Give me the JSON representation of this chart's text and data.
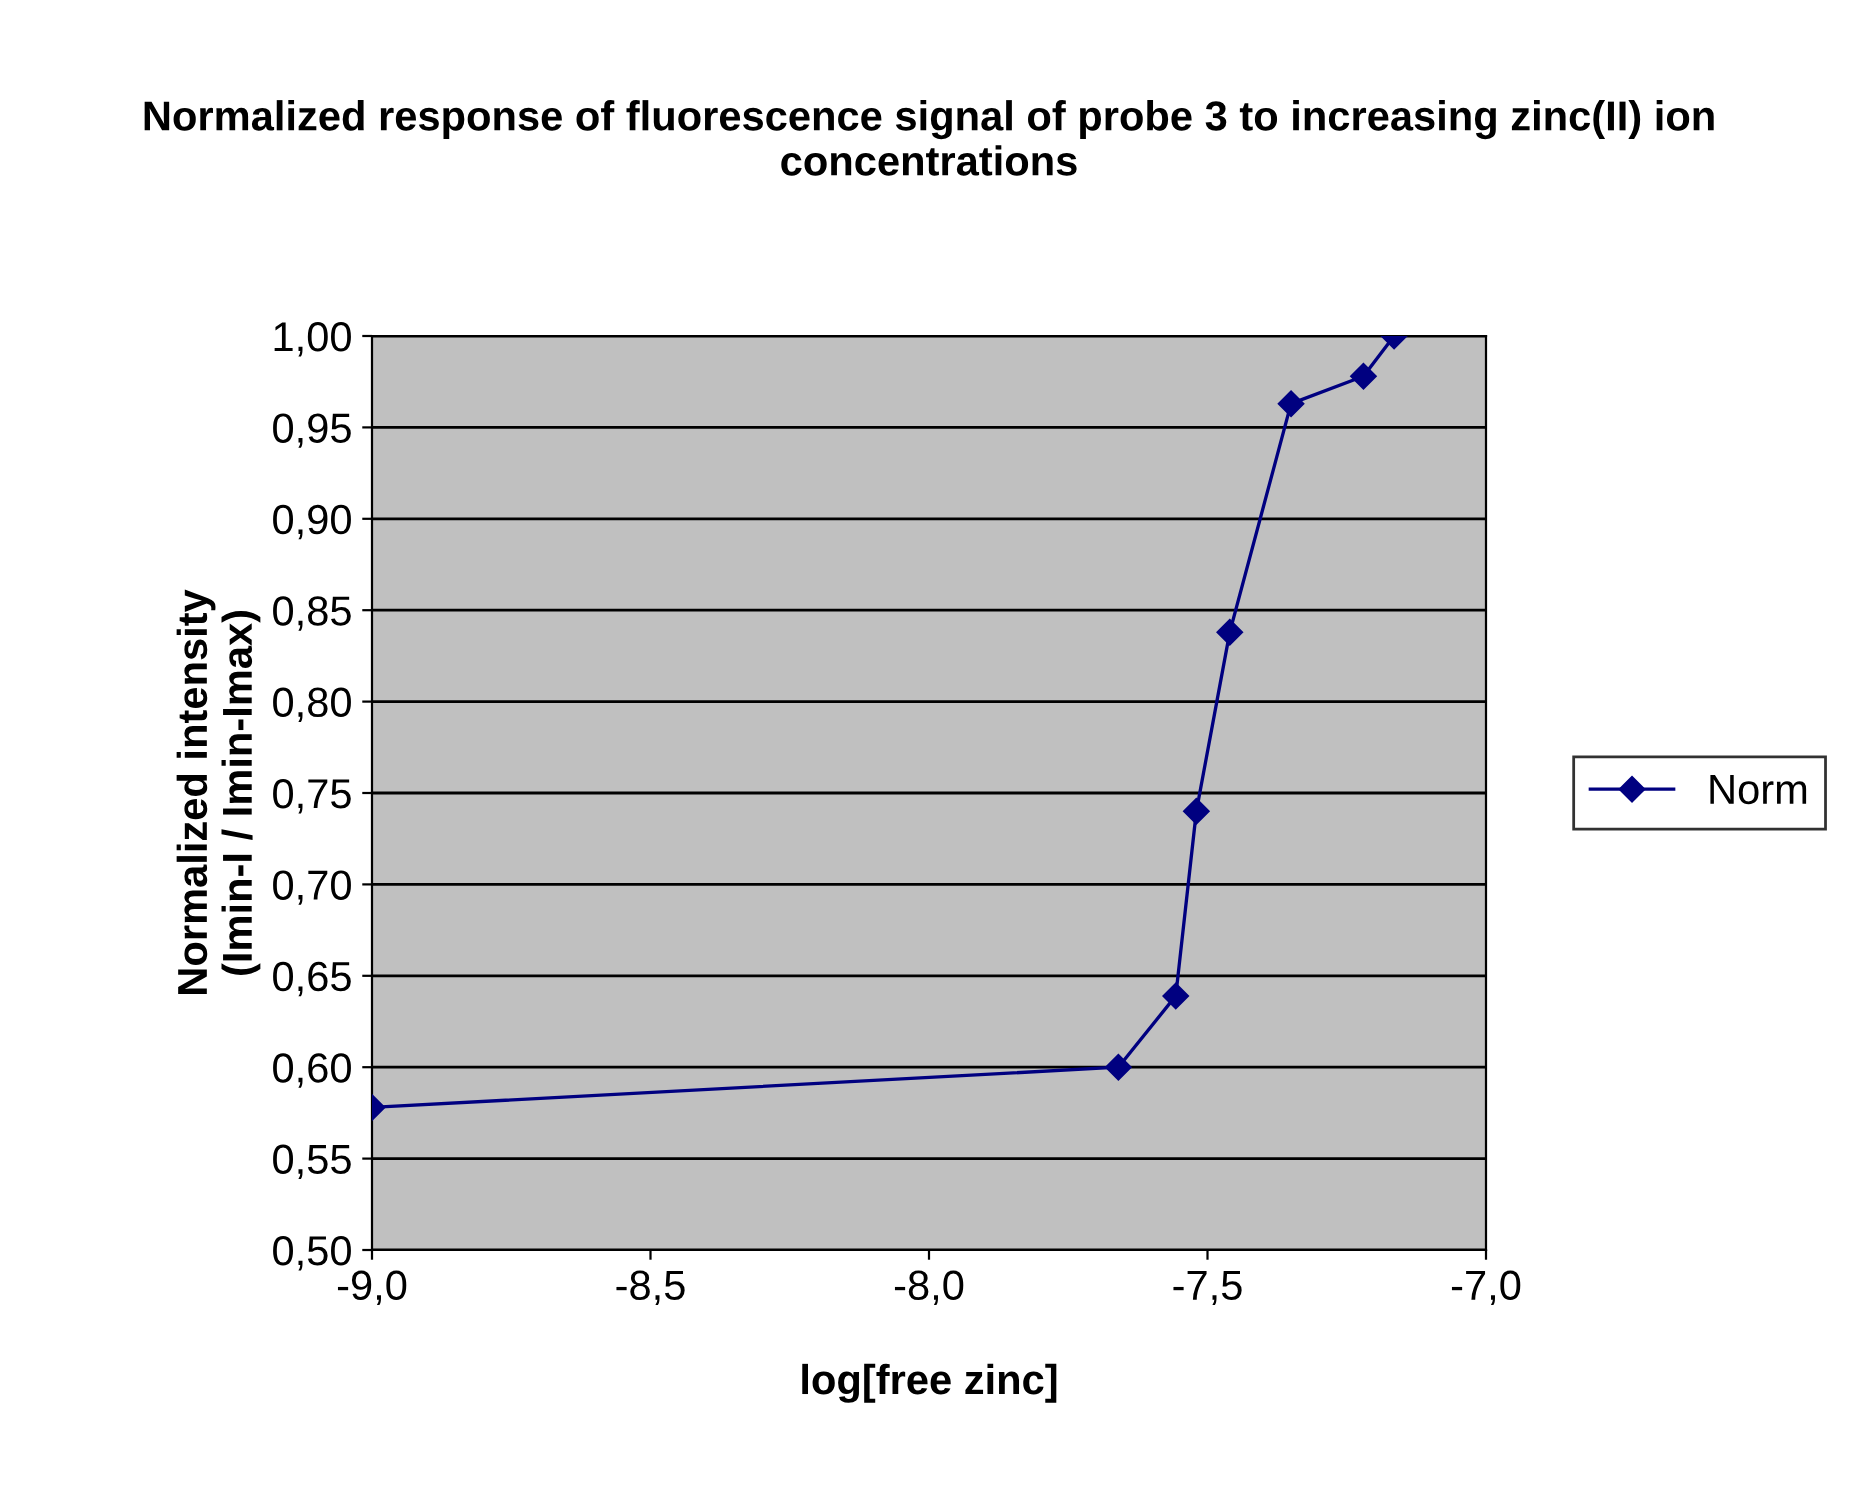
{
  "chart_data": {
    "type": "line",
    "title": "Normalized response of fluorescence signal of probe 3 to increasing zinc(II) ion concentrations",
    "xlabel": "log[free zinc]",
    "ylabel": "Normalized intensity\n(Imin-I / Imin-Imax)",
    "series": [
      {
        "name": "Norm",
        "color": "#000080",
        "x": [
          -9.0,
          -7.66,
          -7.557,
          -7.52,
          -7.46,
          -7.35,
          -7.22,
          -7.165
        ],
        "values": [
          0.578,
          0.6,
          0.639,
          0.74,
          0.838,
          0.963,
          0.978,
          1.0
        ]
      }
    ],
    "xlim": [
      -9.0,
      -7.0
    ],
    "xticks": [
      {
        "value": -9.0,
        "label": "-9,0"
      },
      {
        "value": -8.5,
        "label": "-8,5"
      },
      {
        "value": -8.0,
        "label": "-8,0"
      },
      {
        "value": -7.5,
        "label": "-7,5"
      },
      {
        "value": -7.0,
        "label": "-7,0"
      }
    ],
    "ylim": [
      0.5,
      1.0
    ],
    "yticks": [
      {
        "value": 0.5,
        "label": "0,50"
      },
      {
        "value": 0.55,
        "label": "0,55"
      },
      {
        "value": 0.6,
        "label": "0,60"
      },
      {
        "value": 0.65,
        "label": "0,65"
      },
      {
        "value": 0.7,
        "label": "0,70"
      },
      {
        "value": 0.75,
        "label": "0,75"
      },
      {
        "value": 0.8,
        "label": "0,80"
      },
      {
        "value": 0.85,
        "label": "0,85"
      },
      {
        "value": 0.9,
        "label": "0,90"
      },
      {
        "value": 0.95,
        "label": "0,95"
      },
      {
        "value": 1.0,
        "label": "1,00"
      }
    ],
    "grid": "y",
    "legend": "right",
    "marker": "diamond",
    "line_style": "solid"
  }
}
